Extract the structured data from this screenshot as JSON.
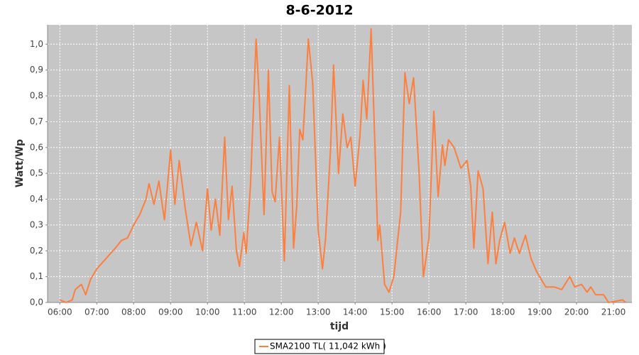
{
  "chart_data": {
    "type": "line",
    "title": "8-6-2012",
    "x_label": "tijd",
    "y_label": "Watt/Wp",
    "x": [
      "06:00",
      "06:10",
      "06:20",
      "06:25",
      "06:35",
      "06:42",
      "06:50",
      "07:00",
      "07:15",
      "07:30",
      "07:40",
      "07:50",
      "08:00",
      "08:10",
      "08:20",
      "08:25",
      "08:33",
      "08:41",
      "08:50",
      "09:00",
      "09:07",
      "09:14",
      "09:24",
      "09:33",
      "09:42",
      "09:52",
      "10:00",
      "10:06",
      "10:13",
      "10:20",
      "10:28",
      "10:34",
      "10:40",
      "10:47",
      "10:52",
      "10:59",
      "11:03",
      "11:10",
      "11:19",
      "11:24",
      "11:32",
      "11:39",
      "11:45",
      "11:50",
      "11:57",
      "12:05",
      "12:13",
      "12:20",
      "12:25",
      "12:30",
      "12:35",
      "12:39",
      "12:44",
      "12:51",
      "13:00",
      "13:07",
      "13:12",
      "13:20",
      "13:25",
      "13:33",
      "13:40",
      "13:47",
      "13:53",
      "14:00",
      "14:08",
      "14:13",
      "14:19",
      "14:26",
      "14:31",
      "14:37",
      "14:40",
      "14:48",
      "14:55",
      "15:03",
      "15:14",
      "15:21",
      "15:28",
      "15:35",
      "15:44",
      "15:51",
      "16:00",
      "16:08",
      "16:15",
      "16:22",
      "16:26",
      "16:32",
      "16:41",
      "16:52",
      "17:02",
      "17:08",
      "17:13",
      "17:20",
      "17:28",
      "17:36",
      "17:43",
      "17:49",
      "17:55",
      "18:03",
      "18:12",
      "18:19",
      "18:27",
      "18:37",
      "18:46",
      "18:55",
      "19:10",
      "19:24",
      "19:36",
      "19:49",
      "19:57",
      "20:08",
      "20:17",
      "20:23",
      "20:31",
      "20:44",
      "20:52",
      "21:15",
      "21:20"
    ],
    "series": [
      {
        "name": "SMA2100 TL( 11,042 kWh )",
        "color": "#ff7f3f",
        "values": [
          0.01,
          0.0,
          0.01,
          0.05,
          0.07,
          0.03,
          0.09,
          0.13,
          0.17,
          0.21,
          0.24,
          0.25,
          0.3,
          0.34,
          0.4,
          0.46,
          0.38,
          0.47,
          0.32,
          0.59,
          0.38,
          0.55,
          0.36,
          0.22,
          0.31,
          0.2,
          0.44,
          0.28,
          0.4,
          0.26,
          0.64,
          0.32,
          0.45,
          0.2,
          0.14,
          0.27,
          0.19,
          0.46,
          1.02,
          0.8,
          0.34,
          0.9,
          0.43,
          0.39,
          0.64,
          0.16,
          0.84,
          0.21,
          0.37,
          0.67,
          0.63,
          0.8,
          1.02,
          0.85,
          0.28,
          0.13,
          0.25,
          0.59,
          0.92,
          0.5,
          0.73,
          0.6,
          0.64,
          0.45,
          0.65,
          0.86,
          0.71,
          1.06,
          0.7,
          0.24,
          0.3,
          0.07,
          0.04,
          0.1,
          0.35,
          0.89,
          0.77,
          0.87,
          0.5,
          0.1,
          0.25,
          0.74,
          0.41,
          0.61,
          0.53,
          0.63,
          0.6,
          0.52,
          0.55,
          0.45,
          0.21,
          0.51,
          0.44,
          0.15,
          0.35,
          0.15,
          0.24,
          0.31,
          0.19,
          0.25,
          0.19,
          0.26,
          0.17,
          0.12,
          0.06,
          0.06,
          0.05,
          0.1,
          0.06,
          0.07,
          0.04,
          0.06,
          0.03,
          0.03,
          0.0,
          0.01,
          0.0
        ]
      }
    ],
    "xlim": [
      "05:40",
      "21:30"
    ],
    "xticks": [
      "06:00",
      "07:00",
      "08:00",
      "09:00",
      "10:00",
      "11:00",
      "12:00",
      "13:00",
      "14:00",
      "15:00",
      "16:00",
      "17:00",
      "18:00",
      "19:00",
      "20:00",
      "21:00"
    ],
    "ylim": [
      0,
      1.075
    ],
    "yticks": [
      {
        "value": 0,
        "label": "0,0"
      },
      {
        "value": 0.1,
        "label": "0,1"
      },
      {
        "value": 0.2,
        "label": "0,2"
      },
      {
        "value": 0.3,
        "label": "0,3"
      },
      {
        "value": 0.4,
        "label": "0,4"
      },
      {
        "value": 0.5,
        "label": "0,5"
      },
      {
        "value": 0.6,
        "label": "0,6"
      },
      {
        "value": 0.7,
        "label": "0,7"
      },
      {
        "value": 0.8,
        "label": "0,8"
      },
      {
        "value": 0.9,
        "label": "0,9"
      },
      {
        "value": 1.0,
        "label": "1,0"
      }
    ],
    "grid": true,
    "legend": "bottom"
  }
}
